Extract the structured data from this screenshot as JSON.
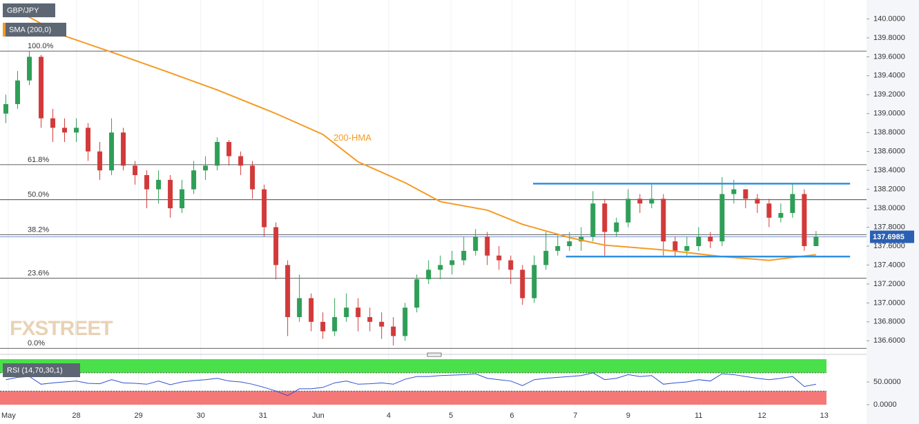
{
  "chart_data": {
    "type": "candlestick",
    "symbol": "GBP/JPY",
    "watermark": "FXSTREET",
    "up_color": "#2f9e57",
    "down_color": "#d23a3a",
    "open": [
      139.0,
      139.1,
      139.35,
      139.6,
      138.95,
      138.85,
      138.8,
      138.85,
      138.6,
      138.4,
      138.8,
      138.45,
      138.35,
      138.2,
      138.3,
      138.0,
      138.2,
      138.4,
      138.45,
      138.7,
      138.55,
      138.45,
      138.2,
      137.8,
      137.4,
      136.85,
      137.05,
      136.8,
      136.7,
      136.85,
      136.95,
      136.85,
      136.8,
      136.75,
      136.65,
      136.95,
      137.25,
      137.35,
      137.4,
      137.45,
      137.55,
      137.7,
      137.5,
      137.45,
      137.35,
      137.05,
      137.4,
      137.55,
      137.6,
      137.65,
      137.7,
      138.05,
      137.75,
      137.85,
      138.1,
      138.05,
      138.1,
      137.65,
      137.55,
      137.6,
      137.7,
      137.65,
      138.15,
      138.2,
      138.1,
      138.05,
      137.9,
      137.95,
      138.15,
      137.6
    ],
    "high": [
      139.2,
      139.45,
      139.66,
      139.62,
      139.05,
      138.95,
      138.95,
      138.9,
      138.7,
      138.95,
      138.85,
      138.5,
      138.4,
      138.4,
      138.35,
      138.3,
      138.5,
      138.55,
      138.75,
      138.72,
      138.6,
      138.5,
      138.25,
      137.85,
      137.45,
      137.3,
      137.1,
      136.9,
      137.05,
      137.1,
      137.05,
      136.95,
      136.9,
      136.85,
      137.0,
      137.3,
      137.45,
      137.5,
      137.55,
      137.7,
      137.78,
      137.75,
      137.6,
      137.5,
      137.4,
      137.5,
      137.75,
      137.72,
      137.75,
      137.8,
      138.18,
      138.1,
      137.9,
      138.2,
      138.15,
      138.25,
      138.15,
      137.7,
      137.7,
      137.8,
      137.75,
      138.33,
      138.3,
      138.2,
      138.15,
      138.1,
      138.05,
      138.27,
      138.2,
      137.76
    ],
    "low": [
      138.9,
      139.05,
      139.3,
      138.85,
      138.7,
      138.7,
      138.7,
      138.5,
      138.3,
      138.35,
      138.4,
      138.25,
      138.0,
      138.05,
      137.9,
      137.95,
      138.15,
      138.3,
      138.4,
      138.45,
      138.35,
      138.1,
      137.7,
      137.25,
      136.65,
      136.8,
      136.7,
      136.62,
      136.65,
      136.8,
      136.7,
      136.7,
      136.62,
      136.55,
      136.6,
      136.9,
      137.2,
      137.25,
      137.3,
      137.4,
      137.5,
      137.4,
      137.35,
      137.2,
      136.98,
      137.0,
      137.35,
      137.5,
      137.55,
      137.55,
      137.65,
      137.5,
      137.7,
      137.8,
      137.95,
      138.0,
      137.5,
      137.48,
      137.5,
      137.55,
      137.58,
      137.6,
      138.05,
      138.0,
      137.95,
      137.8,
      137.85,
      137.9,
      137.55,
      137.6
    ],
    "close": [
      139.1,
      139.35,
      139.6,
      138.95,
      138.85,
      138.8,
      138.85,
      138.6,
      138.4,
      138.8,
      138.45,
      138.35,
      138.2,
      138.3,
      138.0,
      138.2,
      138.4,
      138.45,
      138.7,
      138.55,
      138.45,
      138.2,
      137.8,
      137.4,
      136.85,
      137.05,
      136.8,
      136.7,
      136.85,
      136.95,
      136.85,
      136.8,
      136.75,
      136.65,
      136.95,
      137.25,
      137.35,
      137.4,
      137.45,
      137.55,
      137.7,
      137.5,
      137.45,
      137.35,
      137.05,
      137.4,
      137.55,
      137.6,
      137.65,
      137.7,
      138.05,
      137.75,
      137.85,
      138.1,
      138.05,
      138.1,
      137.65,
      137.55,
      137.6,
      137.7,
      137.65,
      138.15,
      138.2,
      138.1,
      138.05,
      137.9,
      137.95,
      138.15,
      137.6,
      137.7
    ],
    "sma": {
      "name": "SMA (200,0)",
      "color": "#f59a23",
      "x": [
        0,
        5,
        9,
        14,
        18,
        23,
        27,
        30,
        34,
        37,
        41,
        44,
        48,
        51,
        56,
        61,
        65,
        69
      ],
      "values": [
        140.15,
        139.82,
        139.65,
        139.43,
        139.25,
        139.0,
        138.78,
        138.49,
        138.27,
        138.07,
        137.98,
        137.83,
        137.69,
        137.61,
        137.56,
        137.49,
        137.45,
        137.51
      ]
    },
    "annotations": [
      {
        "text": "200-HMA",
        "x": 27.9,
        "y": 138.74
      }
    ],
    "fib_levels": [
      {
        "label": "100.0%",
        "value": 139.66
      },
      {
        "label": "61.8%",
        "value": 138.46
      },
      {
        "label": "50.0%",
        "value": 138.09
      },
      {
        "label": "38.2%",
        "value": 137.72
      },
      {
        "label": "23.6%",
        "value": 137.26
      },
      {
        "label": "0.0%",
        "value": 136.52
      }
    ],
    "trendlines": [
      {
        "x": [
          44.9,
          71.9
        ],
        "values": [
          138.26,
          138.26
        ]
      },
      {
        "x": [
          47.7,
          71.9
        ],
        "values": [
          137.49,
          137.49
        ]
      }
    ],
    "trendline_color": "#2f8fe0",
    "last_price": 137.6985,
    "last_price_color": "#2b5fb4",
    "xlim": [
      -0.5,
      73.3
    ],
    "xticks": [
      {
        "value": 0.2,
        "label": "May"
      },
      {
        "value": 6,
        "label": "28"
      },
      {
        "value": 11.3,
        "label": "29"
      },
      {
        "value": 16.6,
        "label": "30"
      },
      {
        "value": 21.9,
        "label": "31"
      },
      {
        "value": 26.6,
        "label": "Jun"
      },
      {
        "value": 32.6,
        "label": "4"
      },
      {
        "value": 37.9,
        "label": "5"
      },
      {
        "value": 43.1,
        "label": "6"
      },
      {
        "value": 48.5,
        "label": "7"
      },
      {
        "value": 53,
        "label": "9"
      },
      {
        "value": 59,
        "label": "11"
      },
      {
        "value": 64.4,
        "label": "12"
      },
      {
        "value": 69.7,
        "label": "13"
      }
    ],
    "ylim": [
      136.5,
      140.2
    ],
    "yticks": [
      {
        "value": 136.6,
        "label": "136.6000"
      },
      {
        "value": 136.8,
        "label": "136.8000"
      },
      {
        "value": 137,
        "label": "137.0000"
      },
      {
        "value": 137.2,
        "label": "137.2000"
      },
      {
        "value": 137.4,
        "label": "137.4000"
      },
      {
        "value": 137.6,
        "label": "137.6000"
      },
      {
        "value": 137.8,
        "label": "137.8000"
      },
      {
        "value": 138,
        "label": "138.0000"
      },
      {
        "value": 138.2,
        "label": "138.2000"
      },
      {
        "value": 138.4,
        "label": "138.4000"
      },
      {
        "value": 138.6,
        "label": "138.6000"
      },
      {
        "value": 138.8,
        "label": "138.8000"
      },
      {
        "value": 139,
        "label": "139.0000"
      },
      {
        "value": 139.2,
        "label": "139.2000"
      },
      {
        "value": 139.4,
        "label": "139.4000"
      },
      {
        "value": 139.6,
        "label": "139.6000"
      },
      {
        "value": 139.8,
        "label": "139.8000"
      },
      {
        "value": 140,
        "label": "140.0000"
      }
    ],
    "rsi": {
      "name": "RSI (14,70,30,1)",
      "color": "#2f4fd0",
      "values": [
        55,
        60,
        62,
        45,
        48,
        50,
        52,
        47,
        46,
        55,
        48,
        47,
        45,
        52,
        44,
        50,
        53,
        55,
        58,
        52,
        50,
        45,
        38,
        30,
        20,
        35,
        35,
        38,
        48,
        52,
        45,
        46,
        48,
        45,
        56,
        62,
        62,
        64,
        65,
        66,
        68,
        58,
        55,
        52,
        42,
        55,
        58,
        60,
        62,
        64,
        70,
        55,
        58,
        66,
        62,
        64,
        45,
        48,
        50,
        55,
        52,
        68,
        66,
        62,
        58,
        55,
        58,
        62,
        40,
        45
      ],
      "ylim": [
        0,
        100
      ],
      "yticks": [
        {
          "value": 0,
          "label": "0.0000"
        },
        {
          "value": 50,
          "label": "50.0000"
        }
      ],
      "upper": 70,
      "lower": 30,
      "upper_color": "#4ae04a",
      "lower_color": "#f47878"
    }
  }
}
